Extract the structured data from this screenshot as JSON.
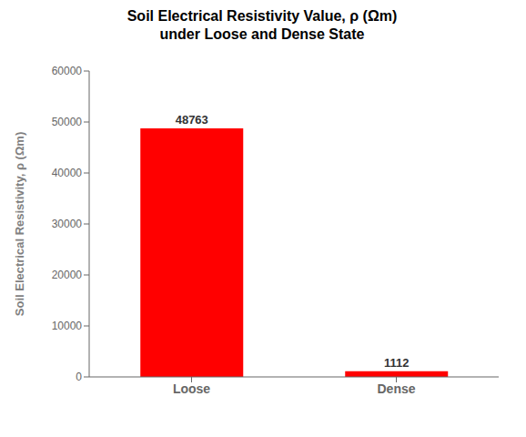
{
  "chart_data": {
    "type": "bar",
    "title": "Soil Electrical Resistivity Value, ρ (Ωm)",
    "subtitle": "under Loose and Dense State",
    "ylabel": "Soil Electrical Resistivity, ρ (Ωm)",
    "categories": [
      "Loose",
      "Dense"
    ],
    "values": [
      48763,
      1112
    ],
    "color": "#ff0000",
    "ylim": [
      0,
      60000
    ],
    "yticks": [
      0,
      10000,
      20000,
      30000,
      40000,
      50000,
      60000
    ],
    "data_labels": true,
    "grid": false
  }
}
